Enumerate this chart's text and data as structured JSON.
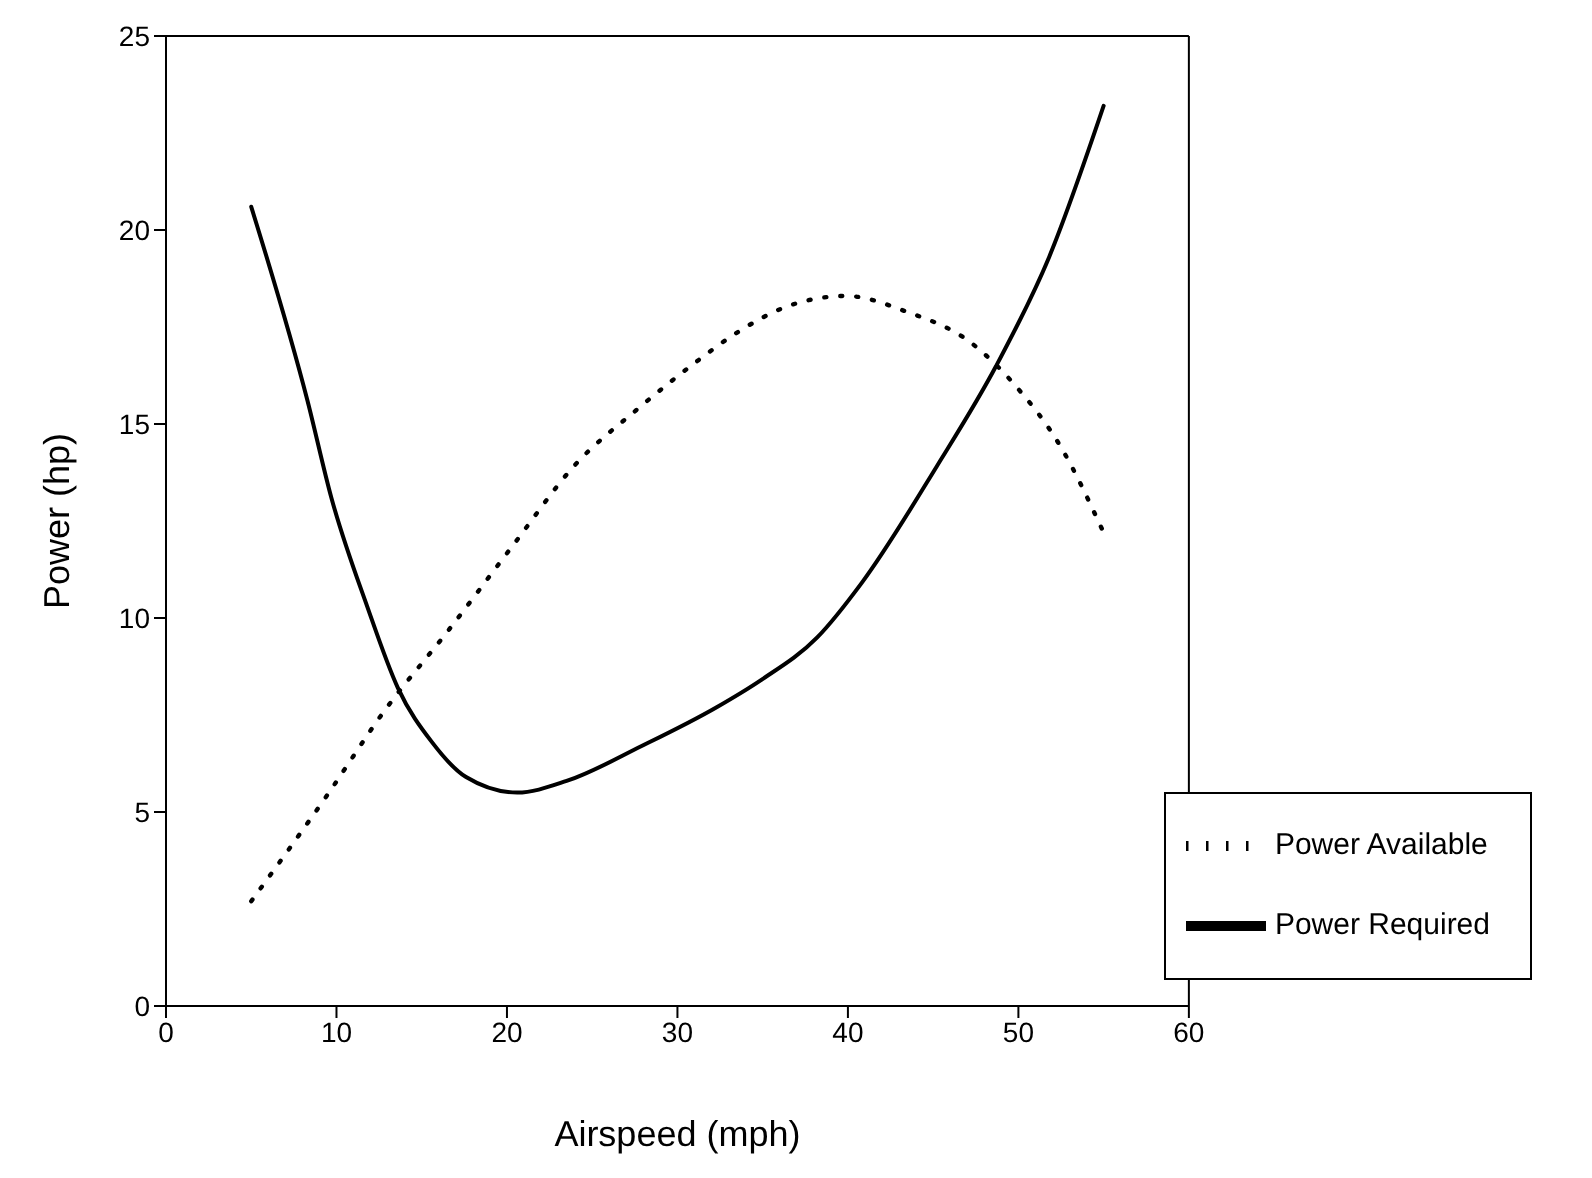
{
  "chart_data": {
    "type": "line",
    "xlabel": "Airspeed (mph)",
    "ylabel": "Power (hp)",
    "xlim": [
      0,
      60
    ],
    "xticks": [
      0,
      10,
      20,
      30,
      40,
      50,
      60
    ],
    "ylim": [
      0,
      25
    ],
    "yticks": [
      0,
      5,
      10,
      15,
      20,
      25
    ],
    "grid": false,
    "legend": "bottom right",
    "marker": "none",
    "series": [
      {
        "name": "Power Required",
        "color": "#000000",
        "line_style": "solid",
        "x": [
          5,
          8.3,
          9.7,
          11.8,
          13.6,
          15.6,
          17.6,
          20.6,
          23.5,
          27.9,
          32.3,
          34.9,
          38.2,
          40.8,
          45.2,
          48.7,
          51.8,
          55
        ],
        "values": [
          20.6,
          15.6,
          13.1,
          10.3,
          8.2,
          6.8,
          5.9,
          5.5,
          5.8,
          6.7,
          7.7,
          8.4,
          9.5,
          10.9,
          13.9,
          16.5,
          19.3,
          23.2
        ]
      },
      {
        "name": "Power Available",
        "color": "#000000",
        "line_style": "dotted",
        "x": [
          5,
          9.4,
          12.8,
          16.6,
          20.4,
          23.9,
          27.7,
          31.4,
          33.3,
          36.9,
          39.9,
          43.4,
          47.2,
          49.8,
          52.5,
          55
        ],
        "values": [
          2.7,
          5.4,
          7.6,
          9.7,
          11.9,
          13.9,
          15.4,
          16.7,
          17.3,
          18.1,
          18.3,
          17.9,
          17.1,
          16.0,
          14.4,
          12.2
        ]
      }
    ]
  }
}
